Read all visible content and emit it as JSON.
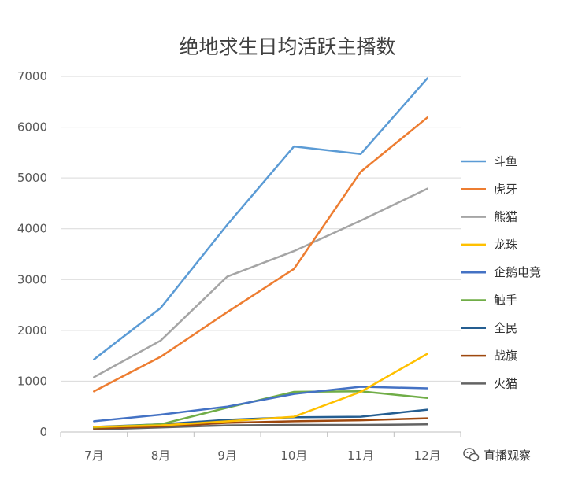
{
  "chart_data": {
    "type": "line",
    "title": "绝地求生日均活跃主播数",
    "xlabel": "",
    "ylabel": "",
    "categories": [
      "7月",
      "8月",
      "9月",
      "10月",
      "11月",
      "12月"
    ],
    "ylim": [
      0,
      7000
    ],
    "yticks": [
      0,
      1000,
      2000,
      3000,
      4000,
      5000,
      6000,
      7000
    ],
    "grid": true,
    "legend_position": "right",
    "series": [
      {
        "name": "斗鱼",
        "color": "#5B9BD5",
        "values": [
          1430,
          2440,
          4080,
          5620,
          5470,
          6960
        ]
      },
      {
        "name": "虎牙",
        "color": "#ED7D31",
        "values": [
          800,
          1480,
          2360,
          3210,
          5120,
          6190
        ]
      },
      {
        "name": "熊猫",
        "color": "#A5A5A5",
        "values": [
          1080,
          1800,
          3060,
          3560,
          4160,
          4790
        ]
      },
      {
        "name": "龙珠",
        "color": "#FFC000",
        "values": [
          100,
          130,
          210,
          300,
          790,
          1540
        ]
      },
      {
        "name": "企鹅电竞",
        "color": "#4472C4",
        "values": [
          210,
          340,
          500,
          750,
          890,
          860
        ]
      },
      {
        "name": "触手",
        "color": "#70AD47",
        "values": [
          90,
          150,
          480,
          790,
          800,
          670
        ]
      },
      {
        "name": "全民",
        "color": "#255E91",
        "values": [
          100,
          150,
          240,
          290,
          300,
          440
        ]
      },
      {
        "name": "战旗",
        "color": "#9E480E",
        "values": [
          70,
          110,
          180,
          210,
          230,
          270
        ]
      },
      {
        "name": "火猫",
        "color": "#636363",
        "values": [
          50,
          90,
          130,
          140,
          140,
          150
        ]
      }
    ]
  },
  "watermark": {
    "text": "直播观察",
    "icon": "wechat-icon"
  }
}
